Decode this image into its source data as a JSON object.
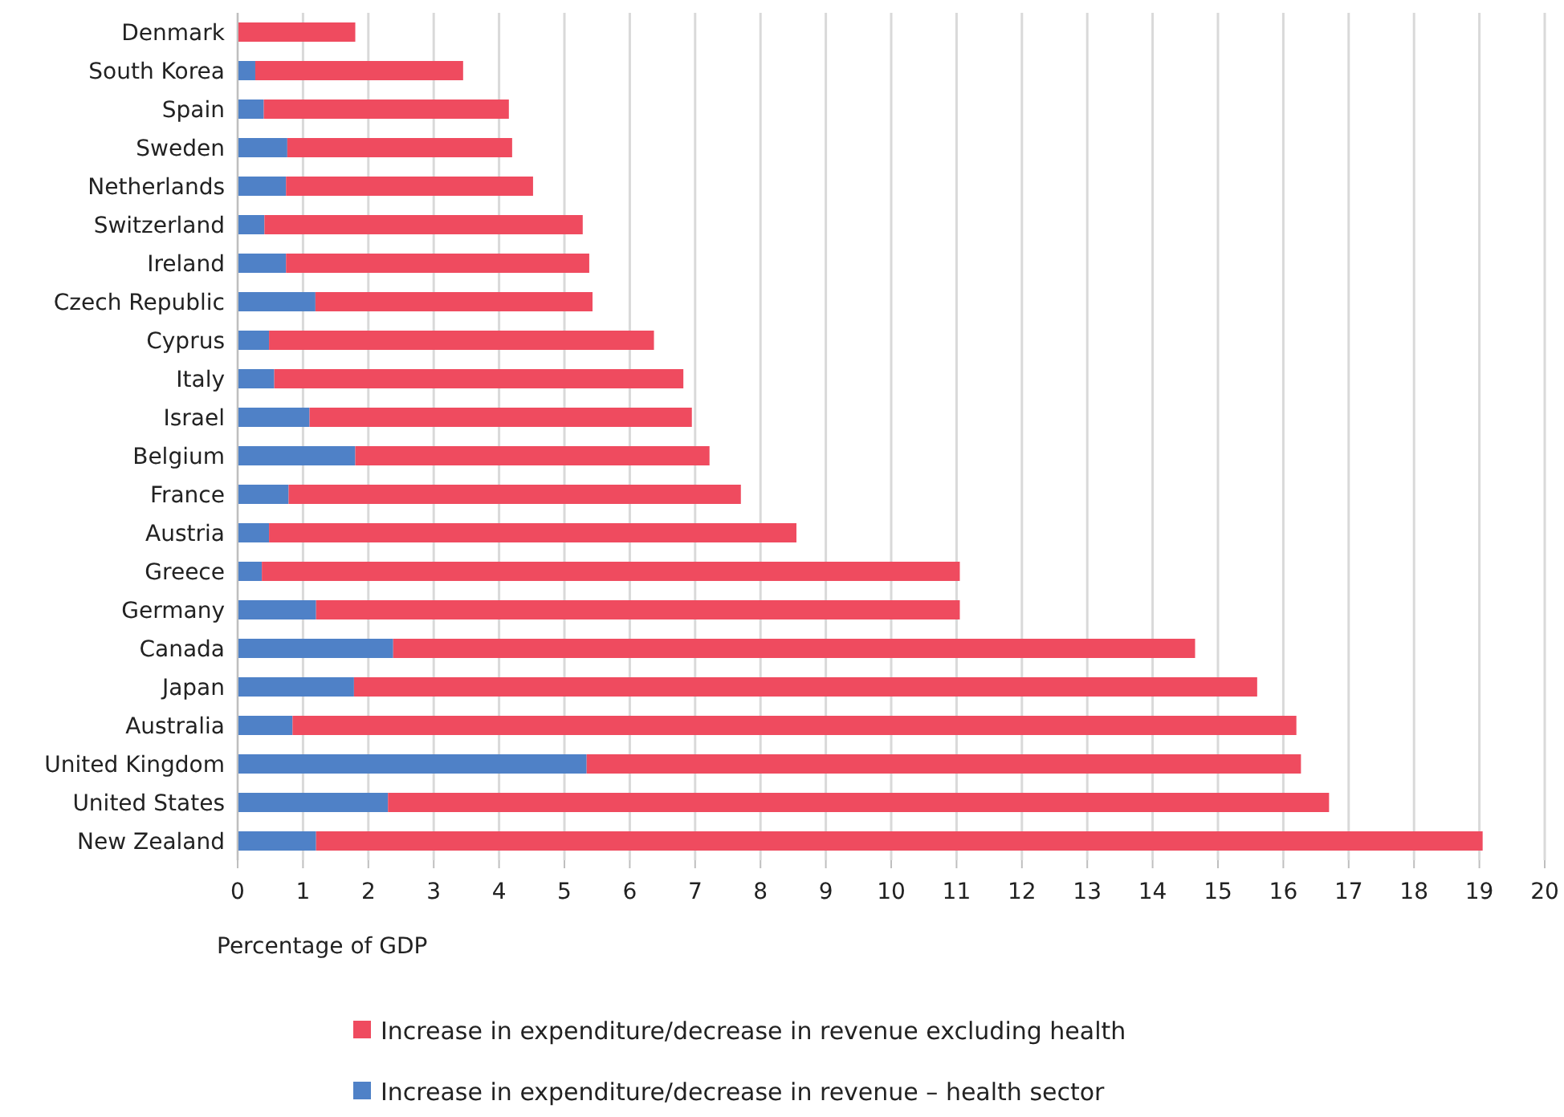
{
  "chart_data": {
    "type": "bar",
    "orientation": "horizontal",
    "stacked": true,
    "xlabel": "Percentage of GDP",
    "categories": [
      "Denmark",
      "South Korea",
      "Spain",
      "Sweden",
      "Netherlands",
      "Switzerland",
      "Ireland",
      "Czech Republic",
      "Cyprus",
      "Italy",
      "Israel",
      "Belgium",
      "France",
      "Austria",
      "Greece",
      "Germany",
      "Canada",
      "Japan",
      "Australia",
      "United Kingdom",
      "United States",
      "New Zealand"
    ],
    "series": [
      {
        "name": "Increase in expenditure/decrease in revenue – health sector",
        "color": "#4f81c7",
        "values": [
          0,
          0.27,
          0.4,
          0.76,
          0.74,
          0.41,
          0.74,
          1.19,
          0.48,
          0.56,
          1.1,
          1.8,
          0.78,
          0.48,
          0.37,
          1.2,
          2.38,
          1.78,
          0.84,
          5.34,
          2.3,
          1.2
        ]
      },
      {
        "name": "Increase in expenditure/decrease in revenue excluding health",
        "color": "#ef4b5f",
        "values": [
          1.8,
          3.18,
          3.75,
          3.44,
          3.78,
          4.87,
          4.64,
          4.24,
          5.89,
          6.26,
          5.85,
          5.42,
          6.92,
          8.07,
          10.68,
          9.85,
          12.27,
          13.82,
          15.36,
          10.93,
          14.4,
          17.85
        ]
      }
    ],
    "xlim": [
      0,
      20
    ],
    "xticks": [
      0,
      1,
      2,
      3,
      4,
      5,
      6,
      7,
      8,
      9,
      10,
      11,
      12,
      13,
      14,
      15,
      16,
      17,
      18,
      19,
      20
    ],
    "grid": "x",
    "legend": "bottom"
  }
}
